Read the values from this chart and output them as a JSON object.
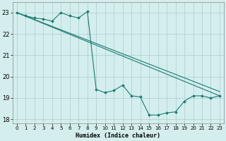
{
  "xlabel": "Humidex (Indice chaleur)",
  "xlim": [
    -0.5,
    23.5
  ],
  "ylim": [
    17.8,
    23.5
  ],
  "xticks": [
    0,
    1,
    2,
    3,
    4,
    5,
    6,
    7,
    8,
    9,
    10,
    11,
    12,
    13,
    14,
    15,
    16,
    17,
    18,
    19,
    20,
    21,
    22,
    23
  ],
  "yticks": [
    18,
    19,
    20,
    21,
    22,
    23
  ],
  "background_color": "#d4eeee",
  "grid_color": "#aacccc",
  "line_color": "#1a7a6e",
  "series": [
    {
      "x": [
        0,
        23
      ],
      "y": [
        23.0,
        19.1
      ]
    },
    {
      "x": [
        0,
        23
      ],
      "y": [
        23.0,
        19.3
      ]
    },
    {
      "x": [
        0,
        1,
        2,
        3,
        4,
        5,
        6,
        7,
        8,
        9,
        10,
        11,
        12,
        13,
        14,
        15,
        16,
        17,
        18,
        19,
        20,
        21,
        22,
        23
      ],
      "y": [
        23.0,
        22.85,
        22.75,
        22.7,
        22.6,
        23.0,
        22.85,
        22.75,
        23.05,
        19.4,
        19.25,
        19.35,
        19.6,
        19.1,
        19.05,
        18.2,
        18.2,
        18.3,
        18.35,
        18.85,
        19.1,
        19.1,
        19.0,
        19.1
      ]
    }
  ]
}
